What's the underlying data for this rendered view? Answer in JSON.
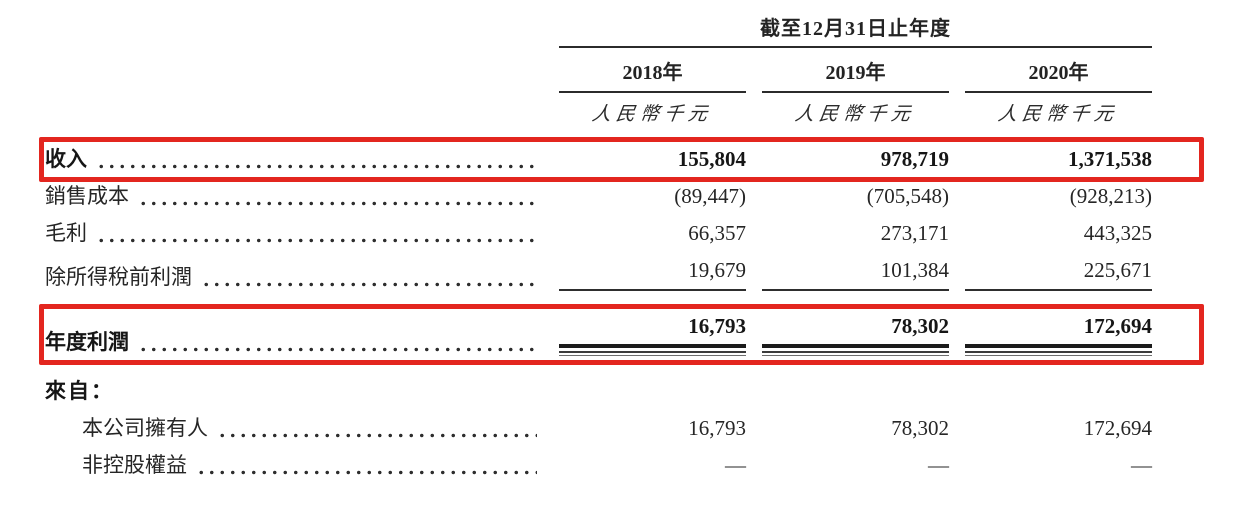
{
  "table": {
    "period_header": "截至12月31日止年度",
    "unit_label": "人民幣千元",
    "years": [
      "2018年",
      "2019年",
      "2020年"
    ],
    "highlight_color": "#e3261f",
    "rows": [
      {
        "label": "收入",
        "values": [
          "155,804",
          "978,719",
          "1,371,538"
        ]
      },
      {
        "label": "銷售成本",
        "values": [
          "(89,447)",
          "(705,548)",
          "(928,213)"
        ]
      },
      {
        "label": "毛利",
        "values": [
          "66,357",
          "273,171",
          "443,325"
        ]
      },
      {
        "label": "除所得稅前利潤",
        "values": [
          "19,679",
          "101,384",
          "225,671"
        ]
      },
      {
        "label": "年度利潤",
        "values": [
          "16,793",
          "78,302",
          "172,694"
        ]
      },
      {
        "label": "來自：",
        "values": [
          "",
          "",
          ""
        ]
      },
      {
        "label": "本公司擁有人",
        "values": [
          "16,793",
          "78,302",
          "172,694"
        ]
      },
      {
        "label": "非控股權益",
        "values": [
          "—",
          "—",
          "—"
        ]
      }
    ]
  }
}
